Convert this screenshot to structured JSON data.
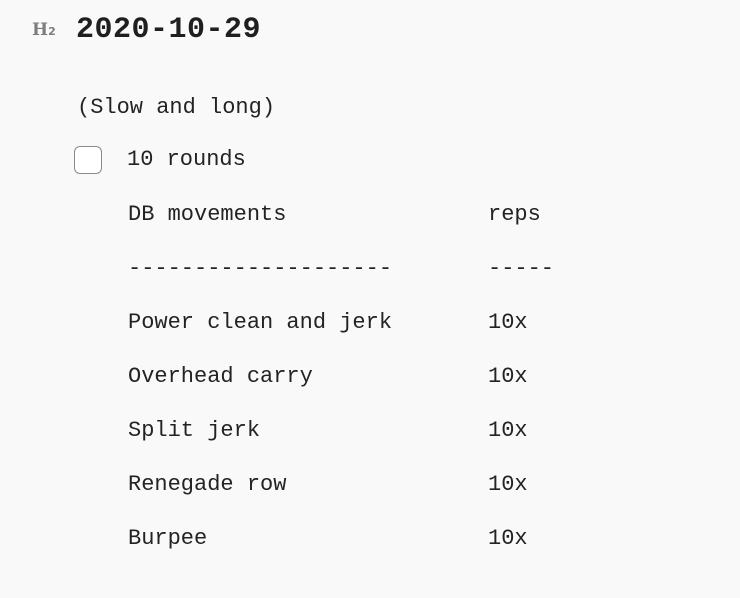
{
  "heading": {
    "marker": "H",
    "marker_level": "2",
    "title": "2020-10-29"
  },
  "subtitle": "(Slow and long)",
  "task": {
    "checked": false,
    "label": "10 rounds"
  },
  "table": {
    "header": {
      "movement": "DB movements",
      "reps": "reps"
    },
    "separator": {
      "movement": "--------------------",
      "reps": "-----"
    },
    "rows": [
      {
        "movement": "Power clean and jerk",
        "reps": "10x"
      },
      {
        "movement": "Overhead carry",
        "reps": "10x"
      },
      {
        "movement": "Split jerk",
        "reps": "10x"
      },
      {
        "movement": "Renegade row",
        "reps": "10x"
      },
      {
        "movement": "Burpee",
        "reps": "10x"
      }
    ]
  }
}
